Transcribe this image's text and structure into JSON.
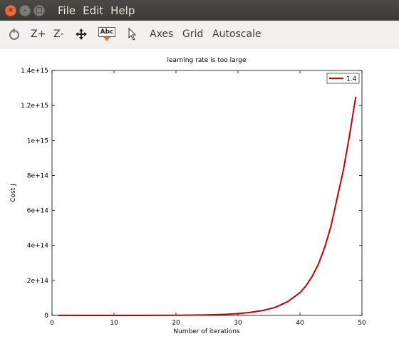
{
  "window": {
    "close_glyph": "×",
    "minimize_glyph": "–",
    "maximize_glyph": "□"
  },
  "menu": [
    "File",
    "Edit",
    "Help"
  ],
  "toolbar": {
    "zoom_in": "Z+",
    "zoom_out": "Z-",
    "text_tool": "Abc",
    "axes": "Axes",
    "grid": "Grid",
    "autoscale": "Autoscale"
  },
  "chart_data": {
    "type": "line",
    "title": "learning rate is too large",
    "xlabel": "Number of iterations",
    "ylabel": "Cost J",
    "xlim": [
      0,
      50
    ],
    "ylim": [
      0,
      1400000000000000.0
    ],
    "x_ticks": [
      "0",
      "10",
      "20",
      "30",
      "40",
      "50"
    ],
    "y_ticks": [
      "0",
      "2e+14",
      "4e+14",
      "6e+14",
      "8e+14",
      "1e+15",
      "1.2e+15",
      "1.4e+15"
    ],
    "grid": false,
    "legend_position": "top-right",
    "series": [
      {
        "name": "1.4",
        "color": "#cc0000",
        "x": [
          1,
          5,
          10,
          15,
          20,
          25,
          28,
          30,
          32,
          34,
          36,
          38,
          40,
          41,
          42,
          43,
          44,
          45,
          46,
          47,
          48,
          49
        ],
        "y": [
          0,
          1000000000.0,
          10000000000.0,
          100000000000.0,
          800000000000.0,
          3000000000000.0,
          6000000000000.0,
          10000000000000.0,
          17000000000000.0,
          28000000000000.0,
          46000000000000.0,
          78000000000000.0,
          130000000000000.0,
          170000000000000.0,
          225000000000000.0,
          295000000000000.0,
          390000000000000.0,
          510000000000000.0,
          670000000000000.0,
          830000000000000.0,
          1030000000000000.0,
          1250000000000000.0
        ]
      }
    ]
  }
}
